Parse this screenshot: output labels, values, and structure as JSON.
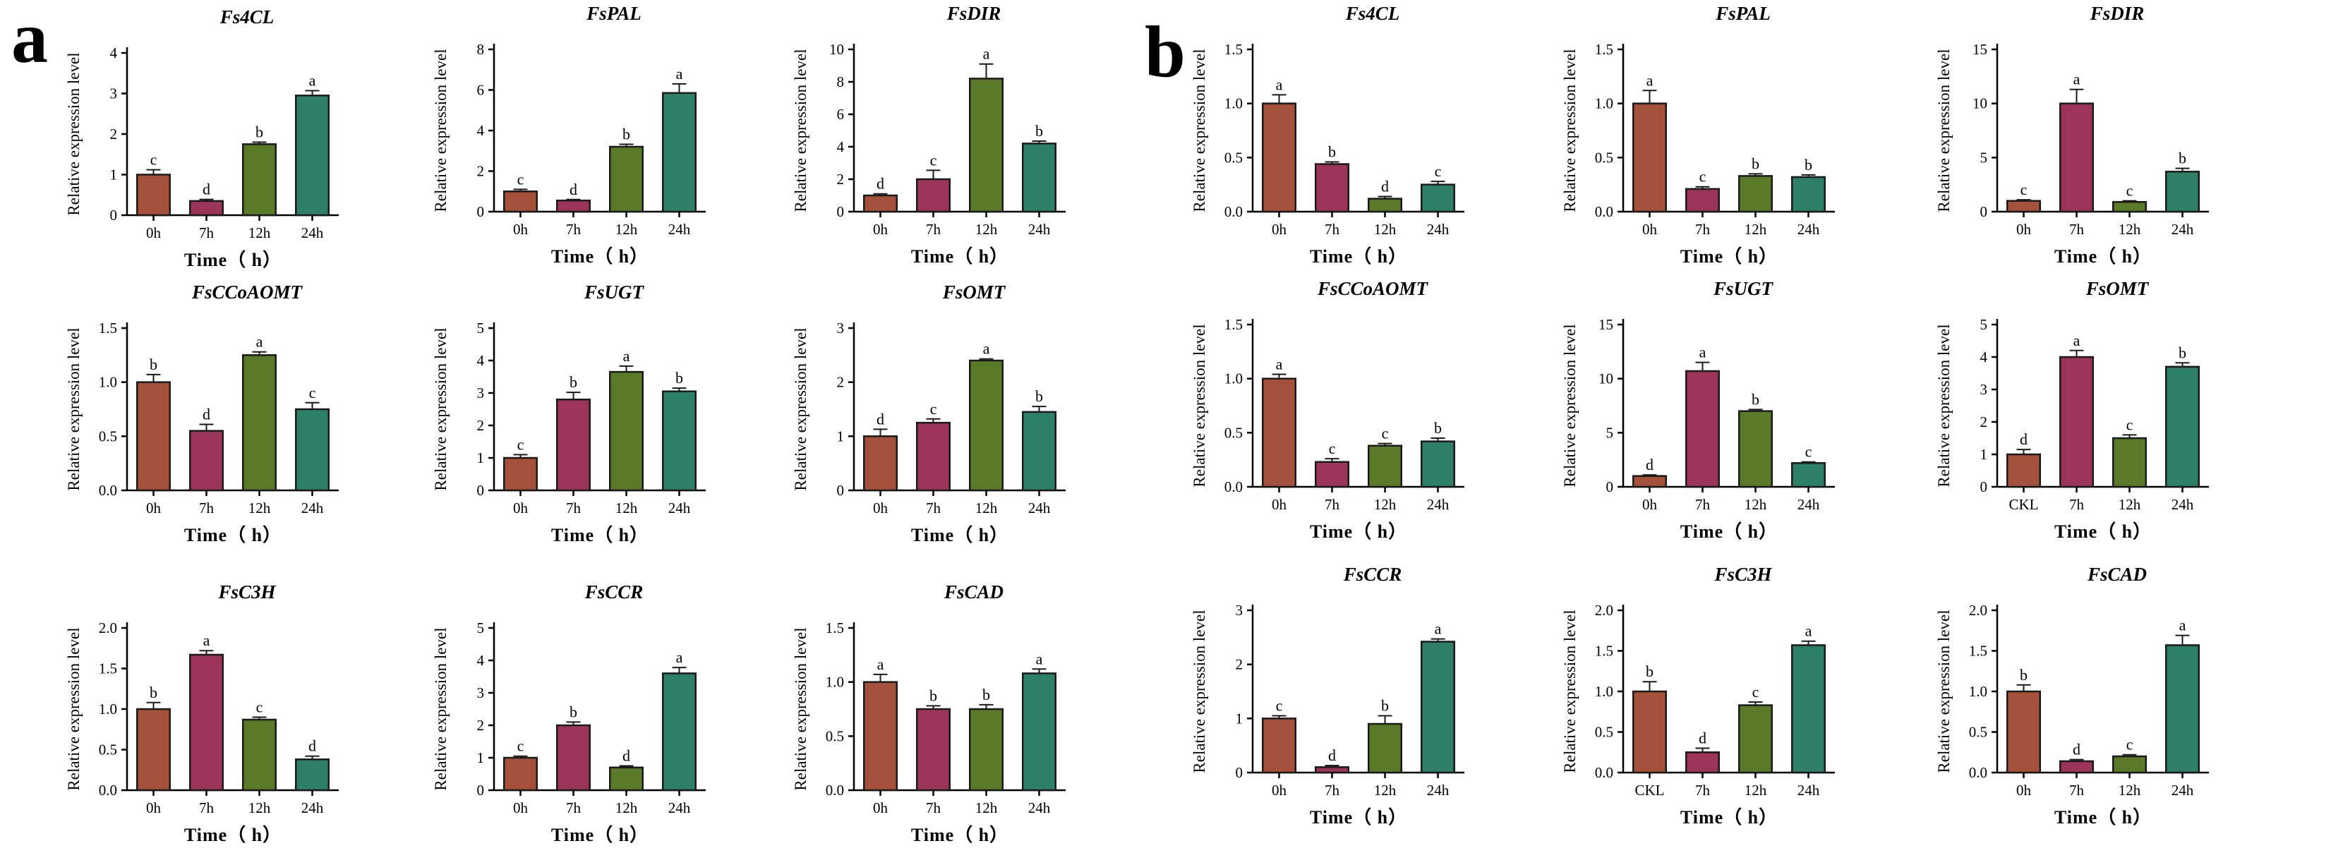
{
  "panels": [
    {
      "letter": "a"
    },
    {
      "letter": "b"
    }
  ],
  "bar_colors": [
    "#a5503a",
    "#9c3459",
    "#5a7a2a",
    "#2d7f68"
  ],
  "chart_data": [
    {
      "panel": "a",
      "type": "bar",
      "title": "Fs4CL",
      "ylabel": "Relative expression level",
      "xlabel": "Time（ h）",
      "categories": [
        "0h",
        "7h",
        "12h",
        "24h"
      ],
      "values": [
        1.0,
        0.35,
        1.75,
        2.95
      ],
      "errors": [
        0.12,
        0.04,
        0.05,
        0.12
      ],
      "labels": [
        "c",
        "d",
        "b",
        "a"
      ],
      "ylim": [
        0,
        4
      ],
      "yticks": [
        "0",
        "1",
        "2",
        "3",
        "4"
      ]
    },
    {
      "panel": "a",
      "type": "bar",
      "title": "FsPAL",
      "ylabel": "Relative expression level",
      "xlabel": "Time（ h）",
      "categories": [
        "0h",
        "7h",
        "12h",
        "24h"
      ],
      "values": [
        1.0,
        0.55,
        3.2,
        5.85
      ],
      "errors": [
        0.1,
        0.05,
        0.12,
        0.45
      ],
      "labels": [
        "c",
        "d",
        "b",
        "a"
      ],
      "ylim": [
        0,
        8
      ],
      "yticks": [
        "0",
        "2",
        "4",
        "6",
        "8"
      ]
    },
    {
      "panel": "a",
      "type": "bar",
      "title": "FsDIR",
      "ylabel": "Relative expression level",
      "xlabel": "Time（ h）",
      "categories": [
        "0h",
        "7h",
        "12h",
        "24h"
      ],
      "values": [
        1.0,
        2.0,
        8.2,
        4.2
      ],
      "errors": [
        0.1,
        0.55,
        0.9,
        0.15
      ],
      "labels": [
        "d",
        "c",
        "a",
        "b"
      ],
      "ylim": [
        0,
        10
      ],
      "yticks": [
        "0",
        "2",
        "4",
        "6",
        "8",
        "10"
      ]
    },
    {
      "panel": "a",
      "type": "bar",
      "title": "FsCCoAOMT",
      "ylabel": "Relative expression level",
      "xlabel": "Time（ h）",
      "categories": [
        "0h",
        "7h",
        "12h",
        "24h"
      ],
      "values": [
        1.0,
        0.55,
        1.25,
        0.75
      ],
      "errors": [
        0.07,
        0.06,
        0.03,
        0.06
      ],
      "labels": [
        "b",
        "d",
        "a",
        "c"
      ],
      "ylim": [
        0,
        1.5
      ],
      "yticks": [
        "0.0",
        "0.5",
        "1.0",
        "1.5"
      ]
    },
    {
      "panel": "a",
      "type": "bar",
      "title": "FsUGT",
      "ylabel": "Relative expression level",
      "xlabel": "Time（ h）",
      "categories": [
        "0h",
        "7h",
        "12h",
        "24h"
      ],
      "values": [
        1.0,
        2.8,
        3.65,
        3.05
      ],
      "errors": [
        0.1,
        0.22,
        0.18,
        0.1
      ],
      "labels": [
        "c",
        "b",
        "a",
        "b"
      ],
      "ylim": [
        0,
        5
      ],
      "yticks": [
        "0",
        "1",
        "2",
        "3",
        "4",
        "5"
      ]
    },
    {
      "panel": "a",
      "type": "bar",
      "title": "FsOMT",
      "ylabel": "Relative expression level",
      "xlabel": "Time（ h）",
      "categories": [
        "0h",
        "7h",
        "12h",
        "24h"
      ],
      "values": [
        1.0,
        1.25,
        2.4,
        1.45
      ],
      "errors": [
        0.13,
        0.07,
        0.03,
        0.1
      ],
      "labels": [
        "d",
        "c",
        "a",
        "b"
      ],
      "ylim": [
        0,
        3
      ],
      "yticks": [
        "0",
        "1",
        "2",
        "3"
      ]
    },
    {
      "panel": "a",
      "type": "bar",
      "title": "FsC3H",
      "ylabel": "Relative expression level",
      "xlabel": "Time（ h）",
      "categories": [
        "0h",
        "7h",
        "12h",
        "24h"
      ],
      "values": [
        1.0,
        1.67,
        0.87,
        0.38
      ],
      "errors": [
        0.08,
        0.05,
        0.03,
        0.04
      ],
      "labels": [
        "b",
        "a",
        "c",
        "d"
      ],
      "ylim": [
        0,
        2.0
      ],
      "yticks": [
        "0.0",
        "0.5",
        "1.0",
        "1.5",
        "2.0"
      ]
    },
    {
      "panel": "a",
      "type": "bar",
      "title": "FsCCR",
      "ylabel": "Relative expression level",
      "xlabel": "Time（ h）",
      "categories": [
        "0h",
        "7h",
        "12h",
        "24h"
      ],
      "values": [
        1.0,
        2.0,
        0.7,
        3.6
      ],
      "errors": [
        0.05,
        0.1,
        0.05,
        0.18
      ],
      "labels": [
        "c",
        "b",
        "d",
        "a"
      ],
      "ylim": [
        0,
        5
      ],
      "yticks": [
        "0",
        "1",
        "2",
        "3",
        "4",
        "5"
      ]
    },
    {
      "panel": "a",
      "type": "bar",
      "title": "FsCAD",
      "ylabel": "Relative expression level",
      "xlabel": "Time（ h）",
      "categories": [
        "0h",
        "7h",
        "12h",
        "24h"
      ],
      "values": [
        1.0,
        0.75,
        0.75,
        1.08
      ],
      "errors": [
        0.07,
        0.03,
        0.04,
        0.04
      ],
      "labels": [
        "a",
        "b",
        "b",
        "a"
      ],
      "ylim": [
        0,
        1.5
      ],
      "yticks": [
        "0.0",
        "0.5",
        "1.0",
        "1.5"
      ]
    },
    {
      "panel": "b",
      "type": "bar",
      "title": "Fs4CL",
      "ylabel": "Relative expression level",
      "xlabel": "Time（ h）",
      "categories": [
        "0h",
        "7h",
        "12h",
        "24h"
      ],
      "values": [
        1.0,
        0.44,
        0.12,
        0.25
      ],
      "errors": [
        0.08,
        0.02,
        0.02,
        0.03
      ],
      "labels": [
        "a",
        "b",
        "d",
        "c"
      ],
      "ylim": [
        0,
        1.5
      ],
      "yticks": [
        "0.0",
        "0.5",
        "1.0",
        "1.5"
      ]
    },
    {
      "panel": "b",
      "type": "bar",
      "title": "FsPAL",
      "ylabel": "Relative expression level",
      "xlabel": "Time（ h）",
      "categories": [
        "0h",
        "7h",
        "12h",
        "24h"
      ],
      "values": [
        1.0,
        0.21,
        0.33,
        0.32
      ],
      "errors": [
        0.12,
        0.02,
        0.02,
        0.02
      ],
      "labels": [
        "a",
        "c",
        "b",
        "b"
      ],
      "ylim": [
        0,
        1.5
      ],
      "yticks": [
        "0.0",
        "0.5",
        "1.0",
        "1.5"
      ]
    },
    {
      "panel": "b",
      "type": "bar",
      "title": "FsDIR",
      "ylabel": "Relative expression level",
      "xlabel": "Time（ h）",
      "categories": [
        "0h",
        "7h",
        "12h",
        "24h"
      ],
      "values": [
        1.0,
        10.0,
        0.9,
        3.7
      ],
      "errors": [
        0.1,
        1.3,
        0.1,
        0.3
      ],
      "labels": [
        "c",
        "a",
        "c",
        "b"
      ],
      "ylim": [
        0,
        15
      ],
      "yticks": [
        "0",
        "5",
        "10",
        "15"
      ]
    },
    {
      "panel": "b",
      "type": "bar",
      "title": "FsCCoAOMT",
      "ylabel": "Relative expression level",
      "xlabel": "Time（ h）",
      "categories": [
        "0h",
        "7h",
        "12h",
        "24h"
      ],
      "values": [
        1.0,
        0.23,
        0.38,
        0.42
      ],
      "errors": [
        0.04,
        0.03,
        0.02,
        0.03
      ],
      "labels": [
        "a",
        "c",
        "c",
        "b"
      ],
      "ylim": [
        0,
        1.5
      ],
      "yticks": [
        "0.0",
        "0.5",
        "1.0",
        "1.5"
      ]
    },
    {
      "panel": "b",
      "type": "bar",
      "title": "FsUGT",
      "ylabel": "Relative expression level",
      "xlabel": "Time（ h）",
      "categories": [
        "0h",
        "7h",
        "12h",
        "24h"
      ],
      "values": [
        1.0,
        10.7,
        7.0,
        2.2
      ],
      "errors": [
        0.1,
        0.8,
        0.15,
        0.1
      ],
      "labels": [
        "d",
        "a",
        "b",
        "c"
      ],
      "ylim": [
        0,
        15
      ],
      "yticks": [
        "0",
        "5",
        "10",
        "15"
      ]
    },
    {
      "panel": "b",
      "type": "bar",
      "title": "FsOMT",
      "ylabel": "Relative expression level",
      "xlabel": "Time（ h）",
      "categories": [
        "CKL",
        "7h",
        "12h",
        "24h"
      ],
      "values": [
        1.0,
        4.0,
        1.5,
        3.7
      ],
      "errors": [
        0.15,
        0.2,
        0.1,
        0.12
      ],
      "labels": [
        "d",
        "a",
        "c",
        "b"
      ],
      "ylim": [
        0,
        5
      ],
      "yticks": [
        "0",
        "1",
        "2",
        "3",
        "4",
        "5"
      ]
    },
    {
      "panel": "b",
      "type": "bar",
      "title": "FsCCR",
      "ylabel": "Relative expression level",
      "xlabel": "Time（ h）",
      "categories": [
        "0h",
        "7h",
        "12h",
        "24h"
      ],
      "values": [
        1.0,
        0.1,
        0.9,
        2.42
      ],
      "errors": [
        0.05,
        0.03,
        0.15,
        0.05
      ],
      "labels": [
        "c",
        "d",
        "b",
        "a"
      ],
      "ylim": [
        0,
        3
      ],
      "yticks": [
        "0",
        "1",
        "2",
        "3"
      ]
    },
    {
      "panel": "b",
      "type": "bar",
      "title": "FsC3H",
      "ylabel": "Relative expression level",
      "xlabel": "Time（ h）",
      "categories": [
        "CKL",
        "7h",
        "12h",
        "24h"
      ],
      "values": [
        1.0,
        0.25,
        0.83,
        1.57
      ],
      "errors": [
        0.12,
        0.05,
        0.04,
        0.05
      ],
      "labels": [
        "b",
        "d",
        "c",
        "a"
      ],
      "ylim": [
        0,
        2.0
      ],
      "yticks": [
        "0.0",
        "0.5",
        "1.0",
        "1.5",
        "2.0"
      ]
    },
    {
      "panel": "b",
      "type": "bar",
      "title": "FsCAD",
      "ylabel": "Relative expression level",
      "xlabel": "Time（ h）",
      "categories": [
        "0h",
        "7h",
        "12h",
        "24h"
      ],
      "values": [
        1.0,
        0.14,
        0.2,
        1.57
      ],
      "errors": [
        0.08,
        0.02,
        0.02,
        0.12
      ],
      "labels": [
        "b",
        "d",
        "c",
        "a"
      ],
      "ylim": [
        0,
        2.0
      ],
      "yticks": [
        "0.0",
        "0.5",
        "1.0",
        "1.5",
        "2.0"
      ]
    }
  ]
}
